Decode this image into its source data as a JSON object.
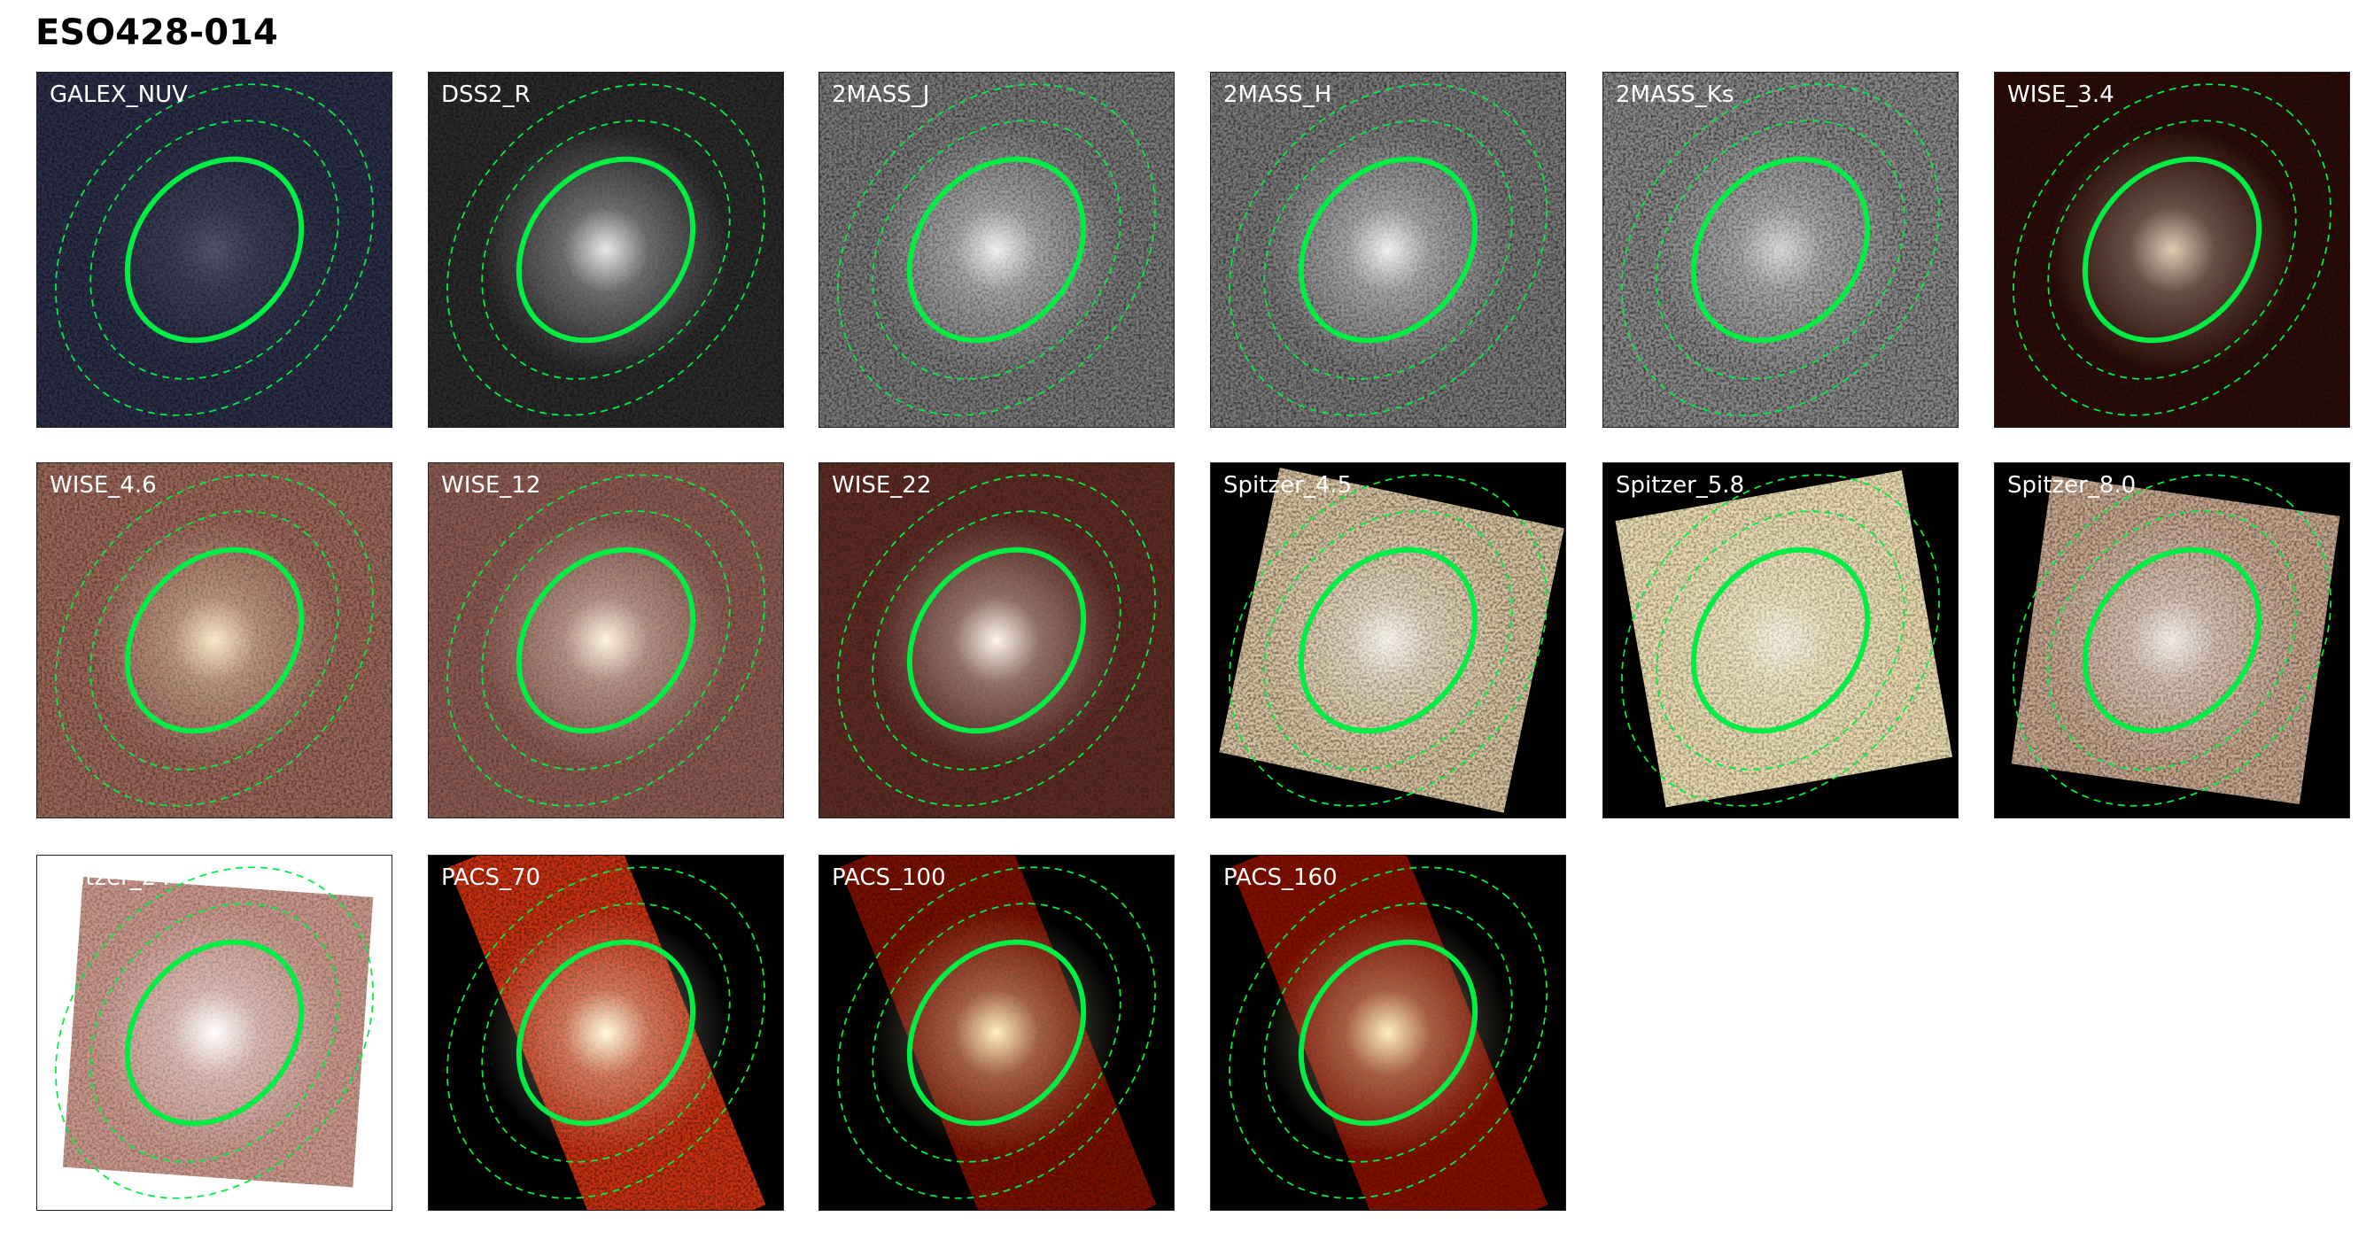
{
  "title": "ESO428-014",
  "ellipse_color": "#00ee44",
  "panels": [
    {
      "label": "GALEX_NUV",
      "style": "galex"
    },
    {
      "label": "DSS2_R",
      "style": "dss"
    },
    {
      "label": "2MASS_J",
      "style": "tmass"
    },
    {
      "label": "2MASS_H",
      "style": "tmass"
    },
    {
      "label": "2MASS_Ks",
      "style": "tmass2"
    },
    {
      "label": "WISE_3.4",
      "style": "wise1"
    },
    {
      "label": "WISE_4.6",
      "style": "wise2"
    },
    {
      "label": "WISE_12",
      "style": "wise3"
    },
    {
      "label": "WISE_22",
      "style": "wise4"
    },
    {
      "label": "Spitzer_4.5",
      "style": "irac1"
    },
    {
      "label": "Spitzer_5.8",
      "style": "irac2"
    },
    {
      "label": "Spitzer_8.0",
      "style": "irac3"
    },
    {
      "label": "Spitzer_24",
      "style": "mips"
    },
    {
      "label": "PACS_70",
      "style": "pacs70"
    },
    {
      "label": "PACS_100",
      "style": "pacs100"
    },
    {
      "label": "PACS_160",
      "style": "pacs160"
    }
  ]
}
